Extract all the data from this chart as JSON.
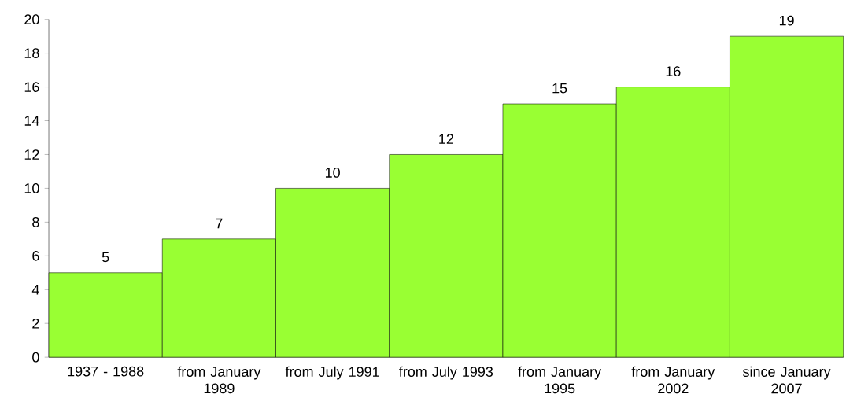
{
  "chart_data": {
    "type": "bar",
    "categories": [
      "1937 - 1988",
      "from January 1989",
      "from July 1991",
      "from July 1993",
      "from January 1995",
      "from January 2002",
      "since January 2007"
    ],
    "values": [
      5,
      7,
      10,
      12,
      15,
      16,
      19
    ],
    "color": "#99ff33",
    "ylim": [
      0,
      20
    ],
    "yticks": [
      0,
      2,
      4,
      6,
      8,
      10,
      12,
      14,
      16,
      18,
      20
    ],
    "data_labels": true
  }
}
